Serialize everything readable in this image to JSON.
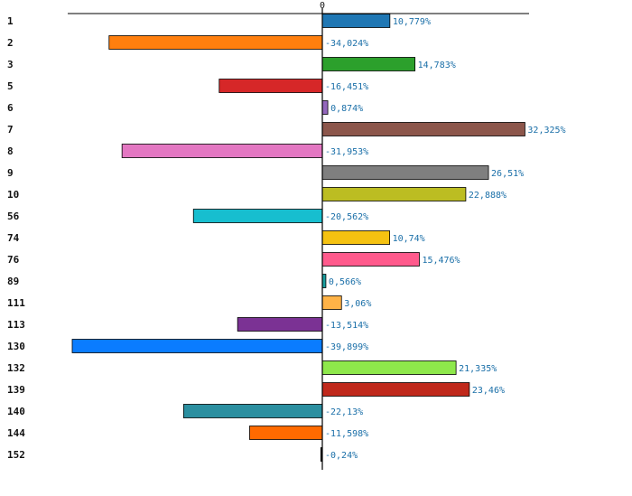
{
  "chart_data": {
    "type": "bar",
    "orientation": "horizontal",
    "x_tick_label": "0",
    "categories": [
      "1",
      "2",
      "3",
      "5",
      "6",
      "7",
      "8",
      "9",
      "10",
      "56",
      "74",
      "76",
      "89",
      "111",
      "113",
      "130",
      "132",
      "139",
      "140",
      "144",
      "152"
    ],
    "values": [
      10.779,
      -34.024,
      14.783,
      -16.451,
      0.874,
      32.325,
      -31.953,
      26.51,
      22.888,
      -20.562,
      10.74,
      15.476,
      0.566,
      3.06,
      -13.514,
      -39.899,
      21.335,
      23.46,
      -22.13,
      -11.598,
      -0.24
    ],
    "value_labels": [
      "10,779%",
      "-34,024%",
      "14,783%",
      "-16,451%",
      "0,874%",
      "32,325%",
      "-31,953%",
      "26,51%",
      "22,888%",
      "-20,562%",
      "10,74%",
      "15,476%",
      "0,566%",
      "3,06%",
      "-13,514%",
      "-39,899%",
      "21,335%",
      "23,46%",
      "-22,13%",
      "-11,598%",
      "-0,24%"
    ],
    "colors": [
      "#1f77b4",
      "#ff7f0e",
      "#2ca02c",
      "#d62728",
      "#9467bd",
      "#8c564b",
      "#e377c2",
      "#7f7f7f",
      "#bcbd22",
      "#17becf",
      "#f5c211",
      "#ff5a8c",
      "#1a9fa0",
      "#ffb347",
      "#7b3294",
      "#0a7cff",
      "#8ee84b",
      "#c0281b",
      "#2b8fa0",
      "#ff6a00",
      "#222222"
    ],
    "xlim": [
      -40,
      33
    ],
    "grid": false,
    "legend": "none"
  }
}
